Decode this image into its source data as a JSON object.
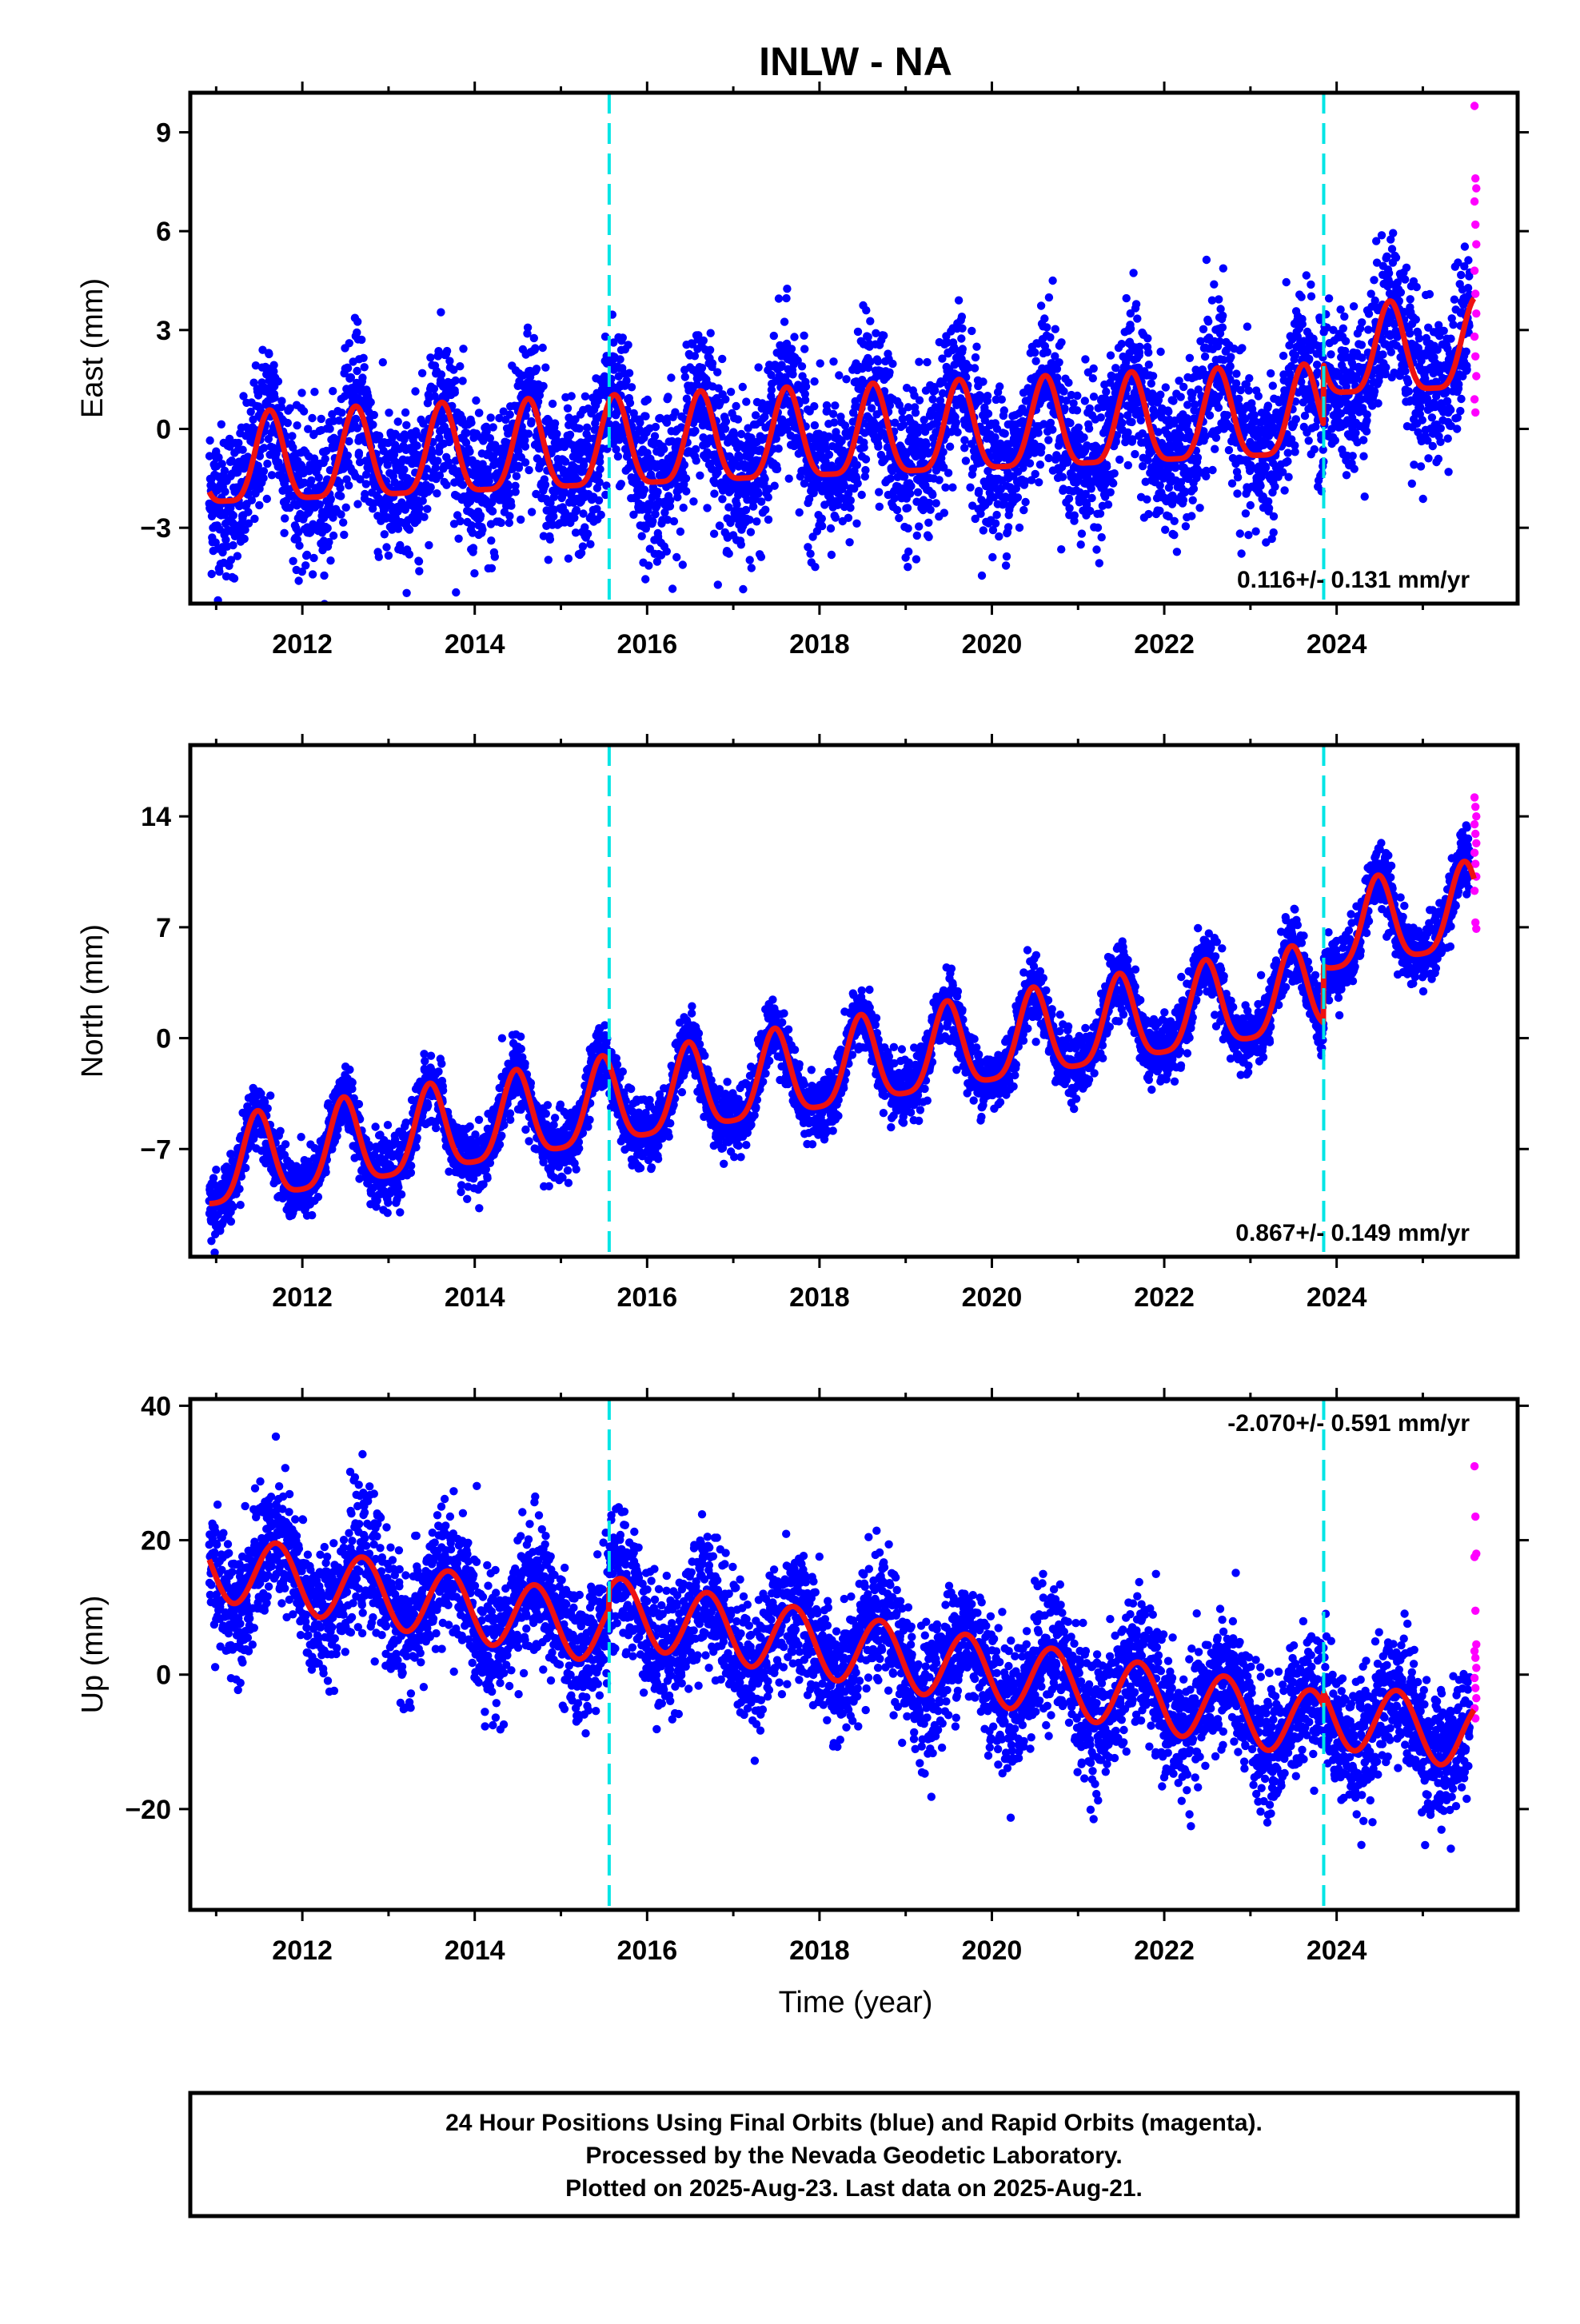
{
  "chart_data": {
    "type": "scatter",
    "title": "INLW - NA",
    "xlabel": "Time (year)",
    "xlim": [
      2010.7,
      2026.1
    ],
    "xticks": [
      2012,
      2014,
      2016,
      2018,
      2020,
      2022,
      2024
    ],
    "reference_lines_x": [
      2015.56,
      2023.85
    ],
    "colors": {
      "final": "#0000ff",
      "rapid": "#ff00ff",
      "model": "#ee1111",
      "reference": "#00e5e5"
    },
    "legend": "none",
    "grid": false,
    "panels": [
      {
        "ylabel": "East (mm)",
        "ylim": [
          -5.3,
          10.2
        ],
        "yticks": [
          -3,
          0,
          3,
          6,
          9
        ],
        "ytick_labels": [
          "−3",
          "0",
          "3",
          "6",
          "9"
        ],
        "rate_text": "0.116+/- 0.131 mm/yr",
        "rate_position": "bottom-right",
        "model": {
          "base": -1.2,
          "slope": 0.116,
          "amp1": 1.35,
          "phase1": 0.62,
          "amp2": 0.35,
          "phase2": 0.62,
          "offsets": [
            {
              "year": 2023.85,
              "value": 1.8
            }
          ]
        },
        "noise": 1.15,
        "rapid_y": [
          9.8,
          7.6,
          7.3,
          6.9,
          6.2,
          5.6,
          4.8,
          4.1,
          3.5,
          2.8,
          2.2,
          1.6,
          0.9,
          0.5
        ]
      },
      {
        "ylabel": "North (mm)",
        "ylim": [
          -13.8,
          18.5
        ],
        "yticks": [
          -7,
          0,
          7,
          14
        ],
        "ytick_labels": [
          "−7",
          "0",
          "7",
          "14"
        ],
        "rate_text": "0.867+/- 0.149 mm/yr",
        "rate_position": "bottom-right",
        "model": {
          "base": -8.3,
          "slope": 0.867,
          "amp1": 2.7,
          "phase1": 0.48,
          "amp2": 0.6,
          "phase2": 0.48,
          "offsets": [
            {
              "year": 2023.85,
              "value": 3.6
            }
          ]
        },
        "noise": 1.0,
        "rapid_y": [
          15.2,
          14.6,
          14.0,
          13.5,
          12.9,
          12.3,
          11.7,
          11.0,
          10.2,
          9.3,
          7.3,
          6.9
        ]
      },
      {
        "ylabel": "Up (mm)",
        "ylim": [
          -35,
          41
        ],
        "yticks": [
          -20,
          0,
          20,
          40
        ],
        "ytick_labels": [
          "−20",
          "0",
          "20",
          "40"
        ],
        "rate_text": "-2.070+/- 0.591 mm/yr",
        "rate_position": "top-right",
        "model": {
          "base": 16.0,
          "slope": -2.07,
          "amp1": 5.0,
          "phase1": 0.7,
          "amp2": 0.0,
          "phase2": 0.0,
          "offsets": [
            {
              "year": 2015.56,
              "value": 3.0
            },
            {
              "year": 2023.85,
              "value": 2.0
            }
          ]
        },
        "noise": 4.8,
        "rapid_y": [
          31,
          23.5,
          18,
          17.5,
          9.5,
          4.5,
          3.5,
          2.5,
          1.0,
          -0.5,
          -2.0,
          -3.5,
          -5.0,
          -6.5
        ]
      }
    ]
  },
  "caption": {
    "line1": "24 Hour Positions Using Final Orbits (blue) and Rapid Orbits (magenta).",
    "line2": "Processed by the Nevada Geodetic Laboratory.",
    "line3": "Plotted on 2025-Aug-23. Last data on 2025-Aug-21."
  }
}
